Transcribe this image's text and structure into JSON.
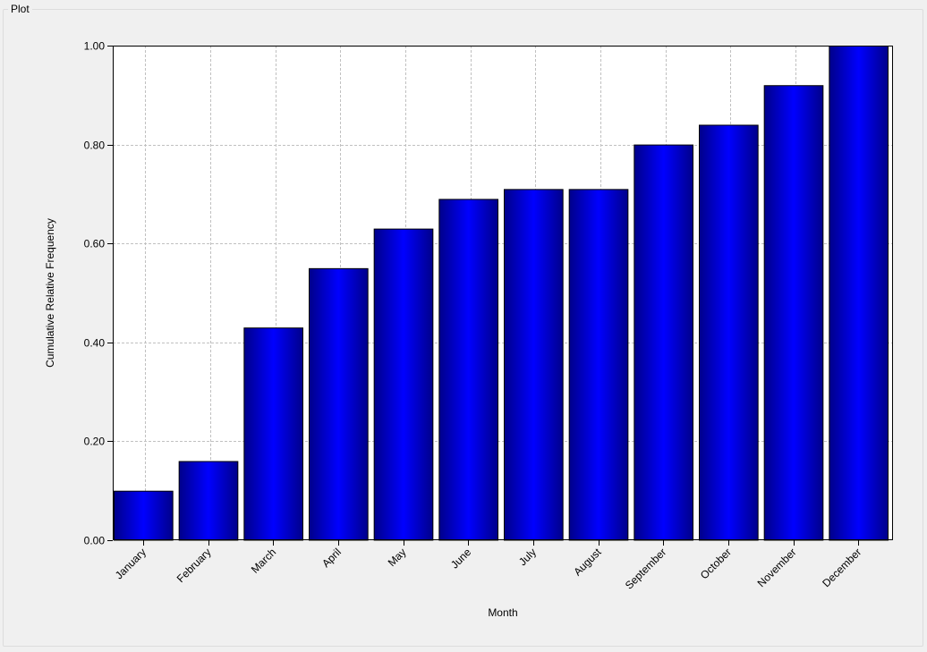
{
  "window": {
    "groupbox_title": "Plot"
  },
  "chart_data": {
    "type": "bar",
    "title": "",
    "xlabel": "Month",
    "ylabel": "Cumulative Relative Frequency",
    "categories": [
      "January",
      "February",
      "March",
      "April",
      "May",
      "June",
      "July",
      "August",
      "September",
      "October",
      "November",
      "December"
    ],
    "values": [
      0.1,
      0.16,
      0.43,
      0.55,
      0.63,
      0.69,
      0.71,
      0.71,
      0.8,
      0.84,
      0.92,
      1.0
    ],
    "ylim": [
      0,
      1
    ],
    "yticks": [
      0.0,
      0.2,
      0.4,
      0.6,
      0.8,
      1.0
    ],
    "ytick_labels": [
      "0.00",
      "0.20",
      "0.40",
      "0.60",
      "0.80",
      "1.00"
    ],
    "grid": true,
    "grid_style": "dashed",
    "bar_color": "#0000ff",
    "bar_edge_color": "#000000",
    "bar_dark_color": "#00008a",
    "grid_color": "#c0c0c0",
    "plot_background": "#ffffff",
    "legend": "none"
  }
}
